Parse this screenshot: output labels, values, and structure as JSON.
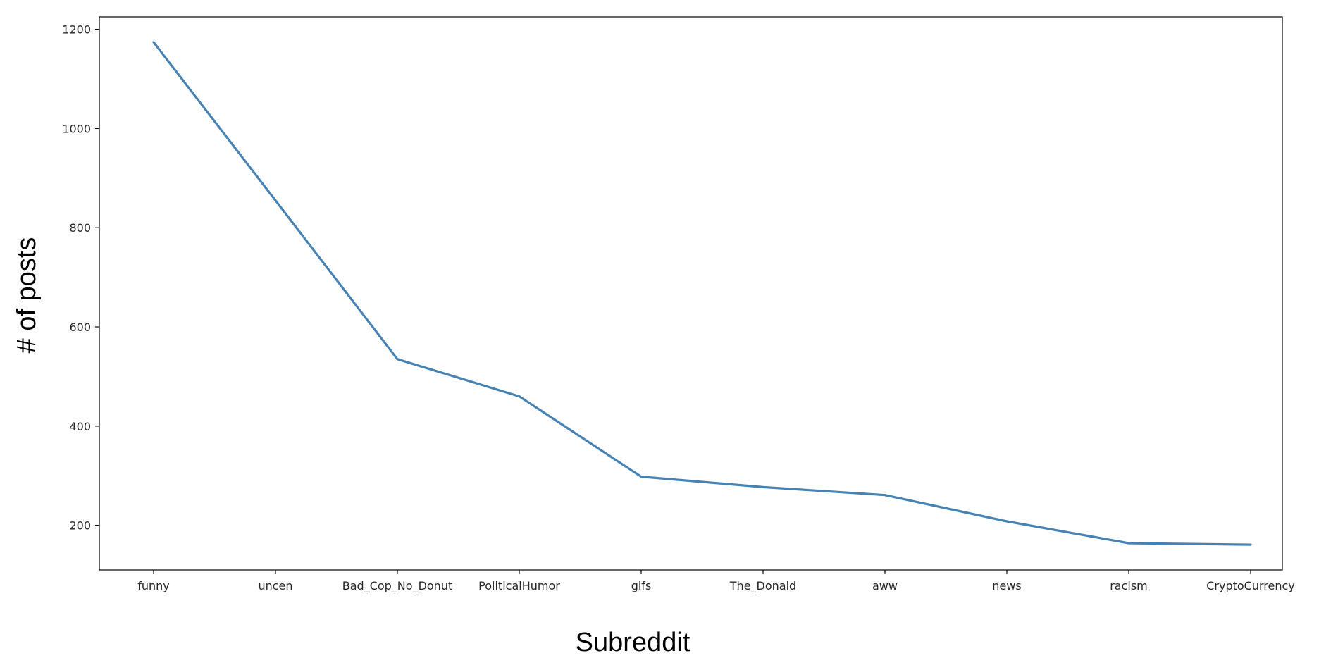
{
  "chart_data": {
    "type": "line",
    "title": "",
    "xlabel": "Subreddit",
    "ylabel": "# of posts",
    "categories": [
      "funny",
      "uncen",
      "Bad_Cop_No_Donut",
      "PoliticalHumor",
      "gifs",
      "The_Donald",
      "aww",
      "news",
      "racism",
      "CryptoCurrency"
    ],
    "series": [
      {
        "values": [
          1174,
          855,
          535,
          460,
          298,
          277,
          261,
          208,
          164,
          161
        ]
      }
    ],
    "yticks": [
      200,
      400,
      600,
      800,
      1000,
      1200
    ],
    "ylim": [
      110,
      1225
    ],
    "grid": false,
    "legend": false,
    "colors": {
      "line": "#4682b4",
      "axes": "#000000",
      "text": "#262626"
    }
  }
}
